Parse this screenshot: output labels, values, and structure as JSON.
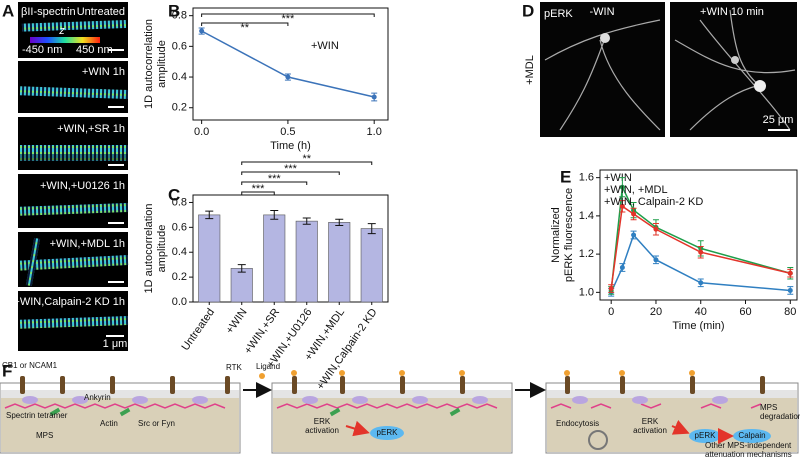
{
  "panel_letters": [
    "A",
    "B",
    "C",
    "D",
    "E",
    "F"
  ],
  "panel_a": {
    "title": "βII-spectrin",
    "colorbar": {
      "axis": "z",
      "min_label": "-450 nm",
      "max_label": "450 nm"
    },
    "conditions": [
      "Untreated",
      "+WIN 1h",
      "+WIN,+SR 1h",
      "+WIN,+U0126 1h",
      "+WIN,+MDL 1h",
      "+WIN,Calpain-2 KD 1h"
    ],
    "scale_bar": "1 μm"
  },
  "panel_d": {
    "stain": "pERK",
    "columns": [
      "-WIN",
      "+WIN 10 min"
    ],
    "row": "+MDL",
    "scale_bar": "25 μm"
  },
  "panel_f": {
    "receptor": "CB1 or NCAM1",
    "rtk": "RTK",
    "ligand": "Ligand",
    "ankyrin": "Ankyrin",
    "spectrin": "Spectrin tetramer",
    "actin": "Actin",
    "src": "Src or Fyn",
    "mps": "MPS",
    "erk_activation_1": [
      "ERK",
      "activation"
    ],
    "perk_1": "pERK",
    "endocytosis": "Endocytosis",
    "erk_activation_2": [
      "ERK",
      "activation"
    ],
    "perk_2": "pERK",
    "calpain": "Calpain",
    "mps_degradation": [
      "MPS",
      "degradation"
    ],
    "other": [
      "Other MPS-independent",
      "attenuation mechanisms"
    ]
  },
  "chart_data": [
    {
      "type": "line",
      "xlabel": "Time (h)",
      "ylabel": [
        "1D autocorrelation",
        "amplitude"
      ],
      "annotation": "+WIN",
      "x": [
        0,
        0.5,
        1.0
      ],
      "values": [
        0.7,
        0.4,
        0.27
      ],
      "errors": [
        0.02,
        0.02,
        0.025
      ],
      "color": "#3b73b9",
      "xlim": [
        -0.05,
        1.08
      ],
      "xticks": [
        {
          "value": 0,
          "label": "0.0"
        },
        {
          "value": 0.5,
          "label": "0.5"
        },
        {
          "value": 1.0,
          "label": "1.0"
        }
      ],
      "ylim": [
        0.12,
        0.85
      ],
      "yticks": [
        0.2,
        0.4,
        0.6,
        0.8
      ],
      "brackets": [
        {
          "label": "**",
          "x": [
            0,
            0.5
          ]
        },
        {
          "label": "***",
          "x": [
            0,
            1.0
          ]
        }
      ]
    },
    {
      "type": "bar",
      "ylabel": [
        "1D autocorrelation",
        "amplitude"
      ],
      "categories": [
        "Untreated",
        "+WIN",
        "+WIN,+SR",
        "+WIN,+U0126",
        "+WIN,+MDL",
        "+WIN,Calpain-2 KD"
      ],
      "values": [
        0.7,
        0.27,
        0.7,
        0.65,
        0.64,
        0.59
      ],
      "errors": [
        0.03,
        0.03,
        0.035,
        0.025,
        0.025,
        0.04
      ],
      "color": "#b4b6e2",
      "ylim": [
        0,
        0.86
      ],
      "yticks": [
        {
          "value": 0,
          "label": "0.0"
        },
        0.2,
        0.4,
        0.6,
        0.8
      ],
      "brackets": [
        "***",
        "***",
        "***",
        "**"
      ]
    },
    {
      "type": "line",
      "xlabel": "Time (min)",
      "ylabel": [
        "Normalized",
        "pERK fluorescence"
      ],
      "legend": "upper left",
      "x": [
        0,
        5,
        10,
        20,
        40,
        80
      ],
      "series": [
        {
          "name": "+WIN",
          "color": "#2f7fc1",
          "values": [
            1.0,
            1.13,
            1.3,
            1.17,
            1.05,
            1.01
          ],
          "errors": [
            0.02,
            0.02,
            0.02,
            0.02,
            0.02,
            0.02
          ]
        },
        {
          "name": "+WIN, +MDL",
          "color": "#1e9e4a",
          "values": [
            1.01,
            1.55,
            1.43,
            1.34,
            1.23,
            1.1
          ],
          "errors": [
            0.02,
            0.05,
            0.04,
            0.04,
            0.04,
            0.03
          ]
        },
        {
          "name": "+WIN, Calpain-2 KD",
          "color": "#e3342a",
          "values": [
            1.02,
            1.45,
            1.41,
            1.33,
            1.21,
            1.1
          ],
          "errors": [
            0.02,
            0.03,
            0.03,
            0.03,
            0.03,
            0.02
          ]
        }
      ],
      "xlim": [
        -5,
        83
      ],
      "xticks": [
        0,
        20,
        40,
        60,
        80
      ],
      "ylim": [
        0.96,
        1.64
      ],
      "yticks": [
        {
          "value": 1.0,
          "label": "1.0"
        },
        1.2,
        1.4,
        1.6
      ]
    }
  ]
}
